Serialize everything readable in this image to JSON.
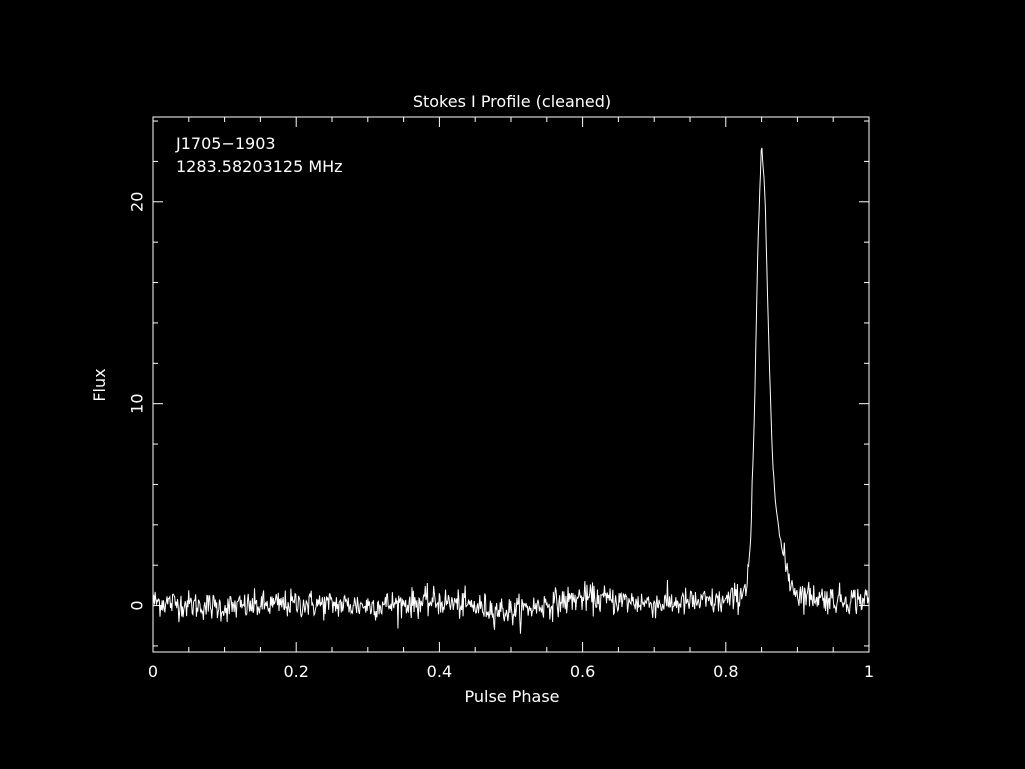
{
  "colors": {
    "background": "#000000",
    "foreground": "#ffffff"
  },
  "chart_data": {
    "type": "line",
    "title": "Stokes I Profile (cleaned)",
    "xlabel": "Pulse Phase",
    "ylabel": "Flux",
    "annotations": [
      "J1705−1903",
      "1283.58203125 MHz"
    ],
    "xlim": [
      0,
      1
    ],
    "ylim": [
      -2.3,
      24.2
    ],
    "x_ticks": [
      0,
      0.2,
      0.4,
      0.6,
      0.8,
      1
    ],
    "x_tick_labels": [
      "0",
      "0.2",
      "0.4",
      "0.6",
      "0.8",
      "1"
    ],
    "y_ticks": [
      0,
      10,
      20
    ],
    "y_tick_labels": [
      "0",
      "10",
      "20"
    ],
    "grid": false,
    "legend": "none",
    "series": [
      {
        "baseline_noise_rms": 0.35,
        "pulse": {
          "peak_phase": 0.85,
          "peak_flux": 23.0,
          "base_phase_start": 0.825,
          "base_phase_end": 0.905
        },
        "x": [
          0.0,
          0.1,
          0.2,
          0.3,
          0.4,
          0.5,
          0.6,
          0.7,
          0.8,
          0.82,
          0.83,
          0.835,
          0.84,
          0.845,
          0.85,
          0.855,
          0.86,
          0.865,
          0.87,
          0.875,
          0.88,
          0.89,
          0.9,
          0.95,
          1.0
        ],
        "values": [
          0.2,
          -0.1,
          0.1,
          0.0,
          0.2,
          -0.3,
          0.4,
          0.1,
          0.2,
          0.5,
          1.2,
          3.5,
          9.5,
          18.0,
          23.0,
          20.0,
          13.0,
          7.5,
          5.0,
          3.5,
          2.5,
          1.2,
          0.6,
          0.3,
          0.3
        ]
      }
    ]
  }
}
